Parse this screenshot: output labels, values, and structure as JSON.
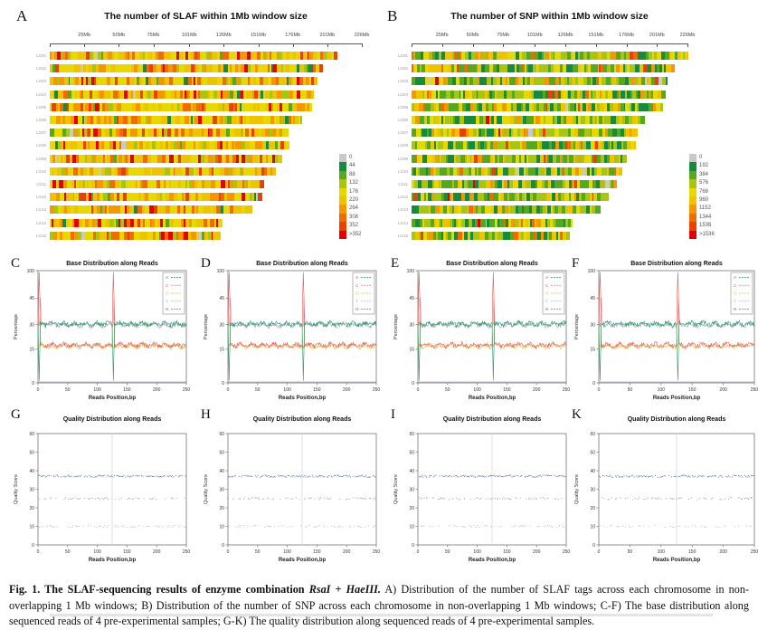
{
  "figure": {
    "caption": {
      "fig_label": "Fig. 1.",
      "title_bold": "The SLAF-sequencing results of enzyme combination",
      "enzyme_1": "RsaI",
      "plus": "+",
      "enzyme_2": "HaeIII.",
      "body": "A) Distribution of the number of SLAF tags across each chromosome in non-overlapping 1 Mb windows; B) Distribution of the number of SNP across each chromosome in non-overlapping 1 Mb windows; C-F) The base distribution along sequenced reads of 4 pre-experimental samples; G-K) The quality distribution along sequenced reads of 4 pre-experimental samples."
    }
  },
  "chart_data": [
    {
      "type": "heatmap",
      "panel": "A",
      "title": "The number of SLAF within 1Mb window size",
      "x_ticks": [
        "25Mb",
        "50Mb",
        "75Mb",
        "101Mb",
        "126Mb",
        "151Mb",
        "176Mb",
        "201Mb",
        "226Mb"
      ],
      "x_tick_values": [
        25,
        50,
        75,
        101,
        126,
        151,
        176,
        201,
        226
      ],
      "x_max_mb": 226,
      "rows": [
        "LG01",
        "LG02",
        "LG03",
        "LG04",
        "LG05",
        "LG06",
        "LG07",
        "LG08",
        "LG09",
        "LG10",
        "LG11",
        "LG12",
        "LG13",
        "LG14",
        "LG15"
      ],
      "row_length_frac": [
        0.92,
        0.875,
        0.861,
        0.841,
        0.835,
        0.806,
        0.762,
        0.759,
        0.733,
        0.719,
        0.687,
        0.672,
        0.643,
        0.551,
        0.545
      ],
      "legend_labels": [
        "0",
        "44",
        "88",
        "132",
        "176",
        "220",
        "264",
        "308",
        "352",
        ">352"
      ],
      "legend_colors": [
        "#c9c9c9",
        "#178a3d",
        "#56a81f",
        "#a9c514",
        "#e6d800",
        "#eec300",
        "#f39800",
        "#ee6c00",
        "#e94200",
        "#e50000"
      ],
      "color_weights": [
        0.8,
        2.5,
        3,
        6,
        30,
        24,
        14,
        9,
        6,
        4.7
      ]
    },
    {
      "type": "heatmap",
      "panel": "B",
      "title": "The number of SNP within 1Mb window size",
      "x_ticks": [
        "25Mb",
        "50Mb",
        "75Mb",
        "101Mb",
        "126Mb",
        "151Mb",
        "176Mb",
        "201Mb",
        "226Mb"
      ],
      "x_tick_values": [
        25,
        50,
        75,
        101,
        126,
        151,
        176,
        201,
        226
      ],
      "x_max_mb": 226,
      "rows": [
        "LG01",
        "LG02",
        "LG03",
        "LG04",
        "LG05",
        "LG06",
        "LG07",
        "LG08",
        "LG09",
        "LG10",
        "LG11",
        "LG12",
        "LG13",
        "LG14",
        "LG15"
      ],
      "row_length_frac": [
        1.0,
        0.957,
        0.924,
        0.912,
        0.908,
        0.846,
        0.813,
        0.809,
        0.776,
        0.764,
        0.735,
        0.715,
        0.678,
        0.58,
        0.57
      ],
      "legend_labels": [
        "0",
        "192",
        "384",
        "576",
        "768",
        "960",
        "1152",
        "1344",
        "1536",
        ">1536"
      ],
      "legend_colors": [
        "#c9c9c9",
        "#178a3d",
        "#56a81f",
        "#a9c514",
        "#e6d800",
        "#eec300",
        "#f39800",
        "#ee6c00",
        "#e94200",
        "#e50000"
      ],
      "color_weights": [
        0.8,
        15,
        21,
        23,
        17,
        12,
        6,
        3,
        1.5,
        0.7
      ]
    },
    {
      "type": "line",
      "panels": [
        "C",
        "D",
        "E",
        "F"
      ],
      "title": "Base Distribution along Reads",
      "xlabel": "Reads Position,bp",
      "ylabel": "Percentage",
      "x_ticks": [
        0,
        50,
        100,
        150,
        200,
        250
      ],
      "y_ticks": [
        0,
        15,
        30,
        45,
        100
      ],
      "xlim": [
        0,
        250
      ],
      "series": [
        {
          "name": "A",
          "color": "#2b9660",
          "baseline": 30.4,
          "spikes": [
            {
              "x": 2,
              "value": 1
            },
            {
              "x": 127,
              "value": 1
            }
          ]
        },
        {
          "name": "C",
          "color": "#e25d55",
          "baseline": 17.6,
          "spikes": [
            {
              "x": 2,
              "value": 97
            },
            {
              "x": 127,
              "value": 97
            }
          ]
        },
        {
          "name": "G",
          "color": "#e6b84c",
          "baseline": 16.8,
          "spikes": []
        },
        {
          "name": "T",
          "color": "#98a6c4",
          "baseline": 29.6,
          "spikes": [
            {
              "x": 4,
              "value": 46
            },
            {
              "x": 128,
              "value": 45
            }
          ]
        },
        {
          "name": "N",
          "color": "#7a6bc0",
          "baseline": 0.4,
          "spikes": []
        }
      ]
    },
    {
      "type": "scatter",
      "panels": [
        "G",
        "H",
        "I",
        "K"
      ],
      "title": "Quality Distribution along Reads",
      "xlabel": "Reads Position,bp",
      "ylabel": "Quality Score",
      "x_ticks": [
        0,
        50,
        100,
        150,
        200,
        250
      ],
      "y_ticks": [
        0,
        10,
        20,
        30,
        40,
        50,
        60
      ],
      "xlim": [
        0,
        250
      ],
      "ylim": [
        0,
        60
      ],
      "bands": [
        {
          "quality": 37,
          "density": "high",
          "color": "#2b4f9e"
        },
        {
          "quality": 25,
          "density": "low",
          "color": "#7186c0"
        },
        {
          "quality": 10,
          "density": "low",
          "color": "#9db0da"
        }
      ],
      "vline_x": 125
    }
  ]
}
